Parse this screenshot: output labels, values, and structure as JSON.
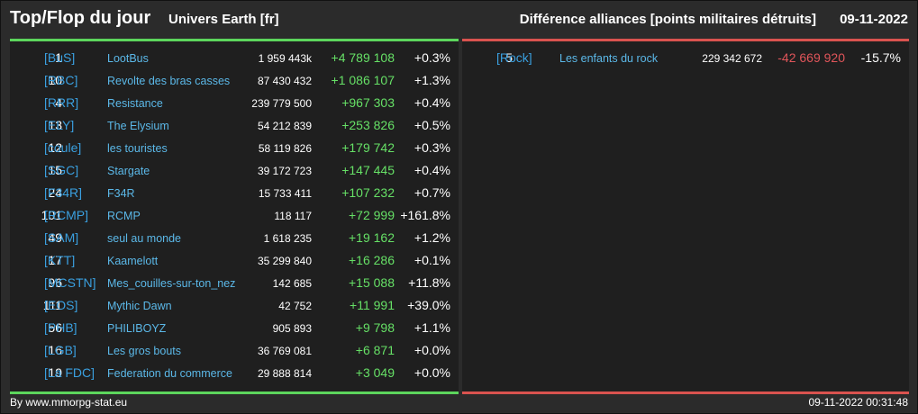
{
  "header": {
    "title": "Top/Flop du jour",
    "universe": "Univers Earth [fr]",
    "subtitle": "Différence alliances [points militaires détruits]",
    "date": "09-11-2022"
  },
  "colors": {
    "positive": "#66e066",
    "negative": "#e0555a",
    "tag": "#3aa0e0",
    "name": "#5bb8e8",
    "top_bar": "#5cd65c",
    "flop_bar": "#d9534f"
  },
  "top": [
    {
      "rank": "1",
      "tag": "[BuS]",
      "name": "LootBus",
      "points": "1 959 443k",
      "diff": "+4 789 108",
      "pct": "+0.3%"
    },
    {
      "rank": "10",
      "tag": "[RBC]",
      "name": "Revolte des bras casses",
      "points": "87 430 432",
      "diff": "+1 086 107",
      "pct": "+1.3%"
    },
    {
      "rank": "4",
      "tag": "[RRR]",
      "name": "Resistance",
      "points": "239 779 500",
      "diff": "+967 303",
      "pct": "+0.4%"
    },
    {
      "rank": "13",
      "tag": "[ELY]",
      "name": "The Elysium",
      "points": "54 212 839",
      "diff": "+253 826",
      "pct": "+0.5%"
    },
    {
      "rank": "12",
      "tag": "[coule]",
      "name": "les touristes",
      "points": "58 119 826",
      "diff": "+179 742",
      "pct": "+0.3%"
    },
    {
      "rank": "15",
      "tag": "[SGC]",
      "name": "Stargate",
      "points": "39 172 723",
      "diff": "+147 445",
      "pct": "+0.4%"
    },
    {
      "rank": "24",
      "tag": "[F34R]",
      "name": "F34R",
      "points": "15 733 411",
      "diff": "+107 232",
      "pct": "+0.7%"
    },
    {
      "rank": "101",
      "tag": "[RCMP]",
      "name": "RCMP",
      "points": "118 117",
      "diff": "+72 999",
      "pct": "+161.8%"
    },
    {
      "rank": "49",
      "tag": "[SAM]",
      "name": "seul au monde",
      "points": "1 618 235",
      "diff": "+19 162",
      "pct": "+1.2%"
    },
    {
      "rank": "17",
      "tag": "[KTT]",
      "name": "Kaamelott",
      "points": "35 299 840",
      "diff": "+16 286",
      "pct": "+0.1%"
    },
    {
      "rank": "96",
      "tag": "[MCSTN]",
      "name": "Mes_couilles-sur-ton_nez",
      "points": "142 685",
      "diff": "+15 088",
      "pct": "+11.8%"
    },
    {
      "rank": "111",
      "tag": "[EOS]",
      "name": "Mythic Dawn",
      "points": "42 752",
      "diff": "+11 991",
      "pct": "+39.0%"
    },
    {
      "rank": "56",
      "tag": "[PHB]",
      "name": "PHILIBOYZ",
      "points": "905 893",
      "diff": "+9 798",
      "pct": "+1.1%"
    },
    {
      "rank": "16",
      "tag": "[LGB]",
      "name": "Les gros bouts",
      "points": "36 769 081",
      "diff": "+6 871",
      "pct": "+0.0%"
    },
    {
      "rank": "19",
      "tag": "[La FDC]",
      "name": "Federation du commerce",
      "points": "29 888 814",
      "diff": "+3 049",
      "pct": "+0.0%"
    }
  ],
  "flop": [
    {
      "rank": "5",
      "tag": "[Rock]",
      "name": "Les enfants du rock",
      "points": "229 342 672",
      "diff": "-42 669 920",
      "pct": "-15.7%"
    }
  ],
  "footer": {
    "credit": "By www.mmorpg-stat.eu",
    "timestamp": "09-11-2022 00:31:48"
  }
}
